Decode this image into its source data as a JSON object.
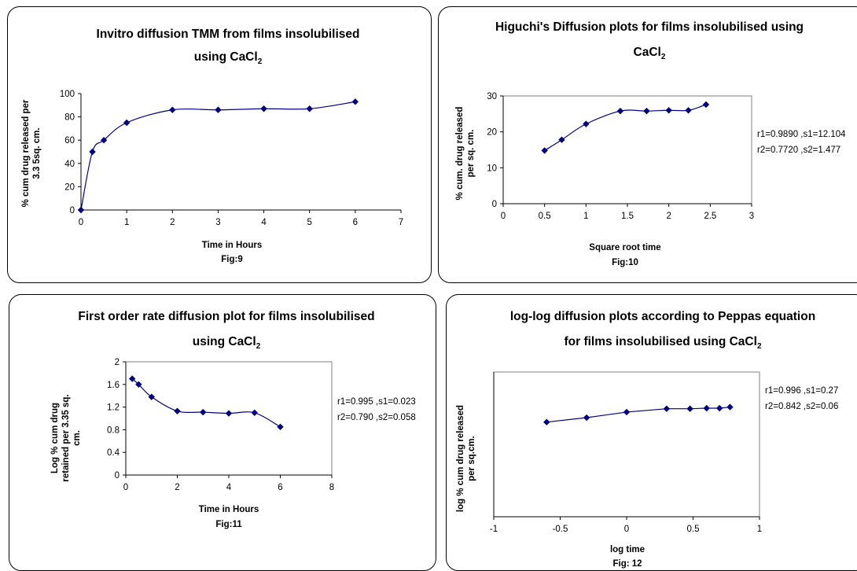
{
  "charts": [
    {
      "title_lines": [
        "Invitro diffusion TMM from films insolubilised",
        "using CaCl",
        "2"
      ],
      "xlabel": "Time in Hours",
      "ylabel_lines": [
        "% cum drug released per",
        "3.3 5sq. cm."
      ],
      "fig": "Fig:9",
      "stats": [],
      "xticks": [
        "0",
        "1",
        "2",
        "3",
        "4",
        "5",
        "6",
        "7"
      ],
      "yticks": [
        "0",
        "20",
        "40",
        "60",
        "80",
        "100"
      ]
    },
    {
      "title_lines": [
        "Higuchi's Diffusion plots for films insolubilised using",
        "CaCl",
        "2"
      ],
      "xlabel": "Square root time",
      "ylabel_lines": [
        "% cum. drug released",
        "per sq. cm."
      ],
      "fig": "Fig:10",
      "stats": [
        "r1=0.9890 ,s1=12.104",
        "r2=0.7720 ,s2=1.477"
      ],
      "xticks": [
        "0",
        "0.5",
        "1",
        "1.5",
        "2",
        "2.5",
        "3"
      ],
      "yticks": [
        "0",
        "10",
        "20",
        "30"
      ]
    },
    {
      "title_lines": [
        "First order rate diffusion plot for films insolubilised",
        "using CaCl",
        "2"
      ],
      "xlabel": "Time in Hours",
      "ylabel_lines": [
        "Log % cum drug",
        "retained per 3.35 sq.",
        "cm."
      ],
      "fig": "Fig:11",
      "stats": [
        "r1=0.995 ,s1=0.023",
        "r2=0.790 ,s2=0.058"
      ],
      "xticks": [
        "0",
        "2",
        "4",
        "6",
        "8"
      ],
      "yticks": [
        "0",
        "0.4",
        "0.8",
        "1.2",
        "1.6",
        "2"
      ]
    },
    {
      "title_lines": [
        "log-log diffusion plots according to Peppas equation",
        "for films insolubilised using CaCl",
        "2"
      ],
      "xlabel": "log time",
      "ylabel_lines": [
        "log % cum drug released",
        "per sq.cm."
      ],
      "fig": "Fig: 12",
      "stats": [
        "r1=0.996 ,s1=0.27",
        "r2=0.842 ,s2=0.06"
      ],
      "xticks": [
        "-1",
        "-0.5",
        "0",
        "0.5",
        "1"
      ],
      "yticks": []
    }
  ],
  "chart_data": [
    {
      "type": "line",
      "series": [
        {
          "x": [
            0,
            0.25,
            0.5,
            1,
            2,
            3,
            4,
            5,
            6
          ],
          "y": [
            0,
            50,
            60,
            75,
            86,
            86,
            87,
            87,
            93
          ]
        }
      ],
      "xlim": [
        0,
        7
      ],
      "ylim": [
        0,
        100
      ],
      "color": "#000080",
      "smooth": true,
      "grid": false
    },
    {
      "type": "line",
      "series": [
        {
          "x": [
            0.5,
            0.707,
            1,
            1.414,
            1.732,
            2,
            2.236,
            2.449
          ],
          "y": [
            14.8,
            17.8,
            22.2,
            25.8,
            25.8,
            26,
            26,
            27.6
          ]
        }
      ],
      "xlim": [
        0,
        3
      ],
      "ylim": [
        0,
        30
      ],
      "color": "#000080",
      "smooth": true,
      "grid": false
    },
    {
      "type": "line",
      "series": [
        {
          "x": [
            0.25,
            0.5,
            1,
            2,
            3,
            4,
            5,
            6
          ],
          "y": [
            1.7,
            1.6,
            1.38,
            1.13,
            1.11,
            1.09,
            1.1,
            0.85
          ]
        }
      ],
      "xlim": [
        0,
        8
      ],
      "ylim": [
        0,
        2
      ],
      "color": "#000080",
      "smooth": true,
      "grid": false
    },
    {
      "type": "line",
      "series": [
        {
          "x": [
            -0.602,
            -0.301,
            0,
            0.301,
            0.477,
            0.602,
            0.699,
            0.778
          ],
          "y": [
            1.7,
            1.78,
            1.88,
            1.94,
            1.94,
            1.95,
            1.95,
            1.97
          ]
        }
      ],
      "xlim": [
        -1,
        1
      ],
      "ylim": [
        0,
        2.6
      ],
      "color": "#000080",
      "smooth": false,
      "grid": false
    }
  ]
}
